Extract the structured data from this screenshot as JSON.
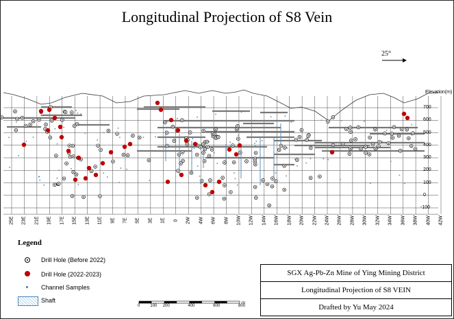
{
  "title": "Longitudinal Projection of S8 Vein",
  "north_arrow": {
    "label": "25°"
  },
  "elevation_axis": {
    "title": "Elevation(m)",
    "ticks": [
      700,
      600,
      500,
      400,
      300,
      200,
      100,
      0,
      -100
    ]
  },
  "section_labels": [
    "25E",
    "23E",
    "21E",
    "19E",
    "17E",
    "15E",
    "13E",
    "11E",
    "9E",
    "7E",
    "5E",
    "3E",
    "1E",
    "0",
    "2W",
    "4W",
    "6W",
    "8W",
    "10W",
    "12W",
    "14W",
    "16W",
    "18W",
    "20W",
    "22W",
    "24W",
    "26W",
    "28W",
    "30W",
    "32W",
    "34W",
    "36W",
    "38W",
    "40W",
    "42W"
  ],
  "legend": {
    "title": "Legend",
    "items": [
      {
        "symbol": "drill-hole-before-2022",
        "label": "Drill Hole (Before 2022)"
      },
      {
        "symbol": "drill-hole-2022-2023",
        "label": "Drill Hole (2022-2023)"
      },
      {
        "symbol": "channel-samples",
        "label": "Channel Samples"
      },
      {
        "symbol": "shaft",
        "label": "Shaft"
      }
    ]
  },
  "scale_bar": {
    "labels": [
      "0",
      "100",
      "200",
      "400",
      "600",
      "800"
    ],
    "unit": "m"
  },
  "info_box": {
    "line1": "SGX Ag-Pb-Zn Mine of Ying Mining District",
    "line2": "Longitudinal Projection of  S8  VEIN",
    "line3": "Drafted by Yu May 2024"
  },
  "colors": {
    "red_hole": "#c00000",
    "grid": "#444444",
    "level": "#777777",
    "shaft": "#5b8fb9"
  }
}
